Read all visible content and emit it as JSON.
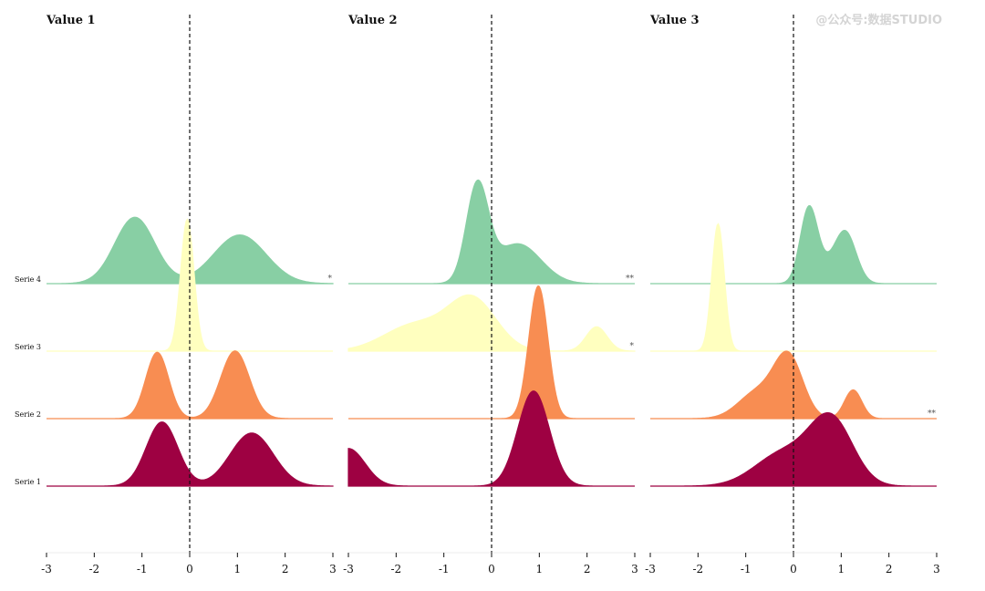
{
  "watermark": "@公众号:数据STUDIO",
  "chart_data": {
    "type": "ridgeline",
    "x_range": [
      -3,
      3
    ],
    "x_ticks": [
      "-3",
      "-2",
      "-1",
      "0",
      "1",
      "2",
      "3"
    ],
    "reference_line_x": 0,
    "series_names": [
      "Serie 1",
      "Serie 2",
      "Serie 3",
      "Serie 4"
    ],
    "series_colors": {
      "Serie 1": "#9e0142",
      "Serie 2": "#f88d52",
      "Serie 3": "#ffffbf",
      "Serie 4": "#88cfa4"
    },
    "panels": [
      {
        "title": "Value 1",
        "ridges": [
          {
            "series": "Serie 1",
            "significance": "",
            "components": [
              {
                "mean": -0.58,
                "sd": 0.33,
                "height": 1.45
              },
              {
                "mean": 1.3,
                "sd": 0.45,
                "height": 1.2
              }
            ]
          },
          {
            "series": "Serie 2",
            "significance": "",
            "components": [
              {
                "mean": -0.68,
                "sd": 0.24,
                "height": 1.5
              },
              {
                "mean": 0.95,
                "sd": 0.3,
                "height": 1.53
              }
            ]
          },
          {
            "series": "Serie 3",
            "significance": "",
            "components": [
              {
                "mean": -0.05,
                "sd": 0.14,
                "height": 2.98
              }
            ]
          },
          {
            "series": "Serie 4",
            "significance": "*",
            "components": [
              {
                "mean": -1.15,
                "sd": 0.42,
                "height": 1.5
              },
              {
                "mean": 1.05,
                "sd": 0.55,
                "height": 1.1
              }
            ]
          }
        ]
      },
      {
        "title": "Value 2",
        "ridges": [
          {
            "series": "Serie 1",
            "significance": "",
            "components": [
              {
                "mean": -3.0,
                "sd": 0.35,
                "height": 0.85
              },
              {
                "mean": 0.88,
                "sd": 0.33,
                "height": 2.15
              }
            ]
          },
          {
            "series": "Serie 2",
            "significance": "",
            "components": [
              {
                "mean": 0.98,
                "sd": 0.2,
                "height": 3.0
              }
            ]
          },
          {
            "series": "Serie 3",
            "significance": "*",
            "components": [
              {
                "mean": -1.6,
                "sd": 0.65,
                "height": 0.6
              },
              {
                "mean": -0.4,
                "sd": 0.5,
                "height": 1.15
              },
              {
                "mean": 2.2,
                "sd": 0.22,
                "height": 0.55
              }
            ]
          },
          {
            "series": "Serie 4",
            "significance": "**",
            "components": [
              {
                "mean": -0.3,
                "sd": 0.23,
                "height": 2.15
              },
              {
                "mean": 0.55,
                "sd": 0.48,
                "height": 0.9
              }
            ]
          }
        ]
      },
      {
        "title": "Value 3",
        "ridges": [
          {
            "series": "Serie 1",
            "significance": "",
            "components": [
              {
                "mean": -0.2,
                "sd": 0.6,
                "height": 0.75
              },
              {
                "mean": 0.8,
                "sd": 0.45,
                "height": 1.45
              }
            ]
          },
          {
            "series": "Serie 2",
            "significance": "**",
            "components": [
              {
                "mean": -0.1,
                "sd": 0.3,
                "height": 1.35
              },
              {
                "mean": -0.75,
                "sd": 0.4,
                "height": 0.6
              },
              {
                "mean": 1.25,
                "sd": 0.18,
                "height": 0.65
              }
            ]
          },
          {
            "series": "Serie 3",
            "significance": "",
            "components": [
              {
                "mean": -1.58,
                "sd": 0.13,
                "height": 2.88
              }
            ]
          },
          {
            "series": "Serie 4",
            "significance": "",
            "components": [
              {
                "mean": 0.32,
                "sd": 0.18,
                "height": 1.6
              },
              {
                "mean": 1.1,
                "sd": 0.22,
                "height": 1.05
              },
              {
                "mean": 0.7,
                "sd": 0.3,
                "height": 0.35
              }
            ]
          }
        ]
      }
    ]
  }
}
